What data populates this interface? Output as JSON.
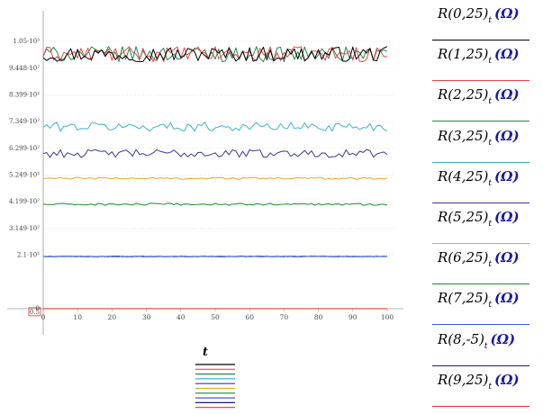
{
  "chart_data": {
    "type": "line",
    "xlabel": "t",
    "xlim": [
      0,
      100
    ],
    "ylim": [
      0,
      1050
    ],
    "x_ticks": [
      "0",
      "10",
      "20",
      "30",
      "40",
      "50",
      "60",
      "70",
      "80",
      "90",
      "100"
    ],
    "y_tick_values": [
      0,
      0.5,
      210,
      314.9,
      419.9,
      524.9,
      629.9,
      734.9,
      839.9,
      944.8,
      1050
    ],
    "y_ticks": [
      "0",
      "0.5",
      "2.1·10²",
      "3.149·10²",
      "4.199·10²",
      "5.249·10²",
      "6.299·10²",
      "7.349·10²",
      "8.399·10²",
      "9.448·10²",
      "1.05·10³"
    ],
    "series": [
      {
        "name": "R(0,25)",
        "name_sub": "t",
        "unit": "(Ω)",
        "color": "#000000",
        "mean": 1000,
        "amp": 30
      },
      {
        "name": "R(1,25)",
        "name_sub": "t",
        "unit": "(Ω)",
        "color": "#e8474b",
        "mean": 1000,
        "amp": 30
      },
      {
        "name": "R(2,25)",
        "name_sub": "t",
        "unit": "(Ω)",
        "color": "#1f8a4c",
        "mean": 1000,
        "amp": 30
      },
      {
        "name": "R(3,25)",
        "name_sub": "t",
        "unit": "(Ω)",
        "color": "#3ab5c8",
        "mean": 715,
        "amp": 18
      },
      {
        "name": "R(4,25)",
        "name_sub": "t",
        "unit": "(Ω)",
        "color": "#3b3a8f",
        "mean": 610,
        "amp": 16
      },
      {
        "name": "R(5,25)",
        "name_sub": "t",
        "unit": "(Ω)",
        "color": "#e8a71c",
        "mean": 512,
        "amp": 4
      },
      {
        "name": "R(6,25)",
        "name_sub": "t",
        "unit": "(Ω)",
        "color": "#1f8a2a",
        "mean": 410,
        "amp": 4
      },
      {
        "name": "R(7,25)",
        "name_sub": "t",
        "unit": "(Ω)",
        "color": "#3d5bd9",
        "mean": 205,
        "amp": 1.5
      },
      {
        "name": "R(8,-5)",
        "name_sub": "t",
        "unit": "(Ω)",
        "color": "#1a1a8c",
        "mean": 205,
        "amp": 1
      },
      {
        "name": "R(9,25)",
        "name_sub": "t",
        "unit": "(Ω)",
        "color": "#e83030",
        "mean": 0.5,
        "amp": 0
      }
    ]
  }
}
